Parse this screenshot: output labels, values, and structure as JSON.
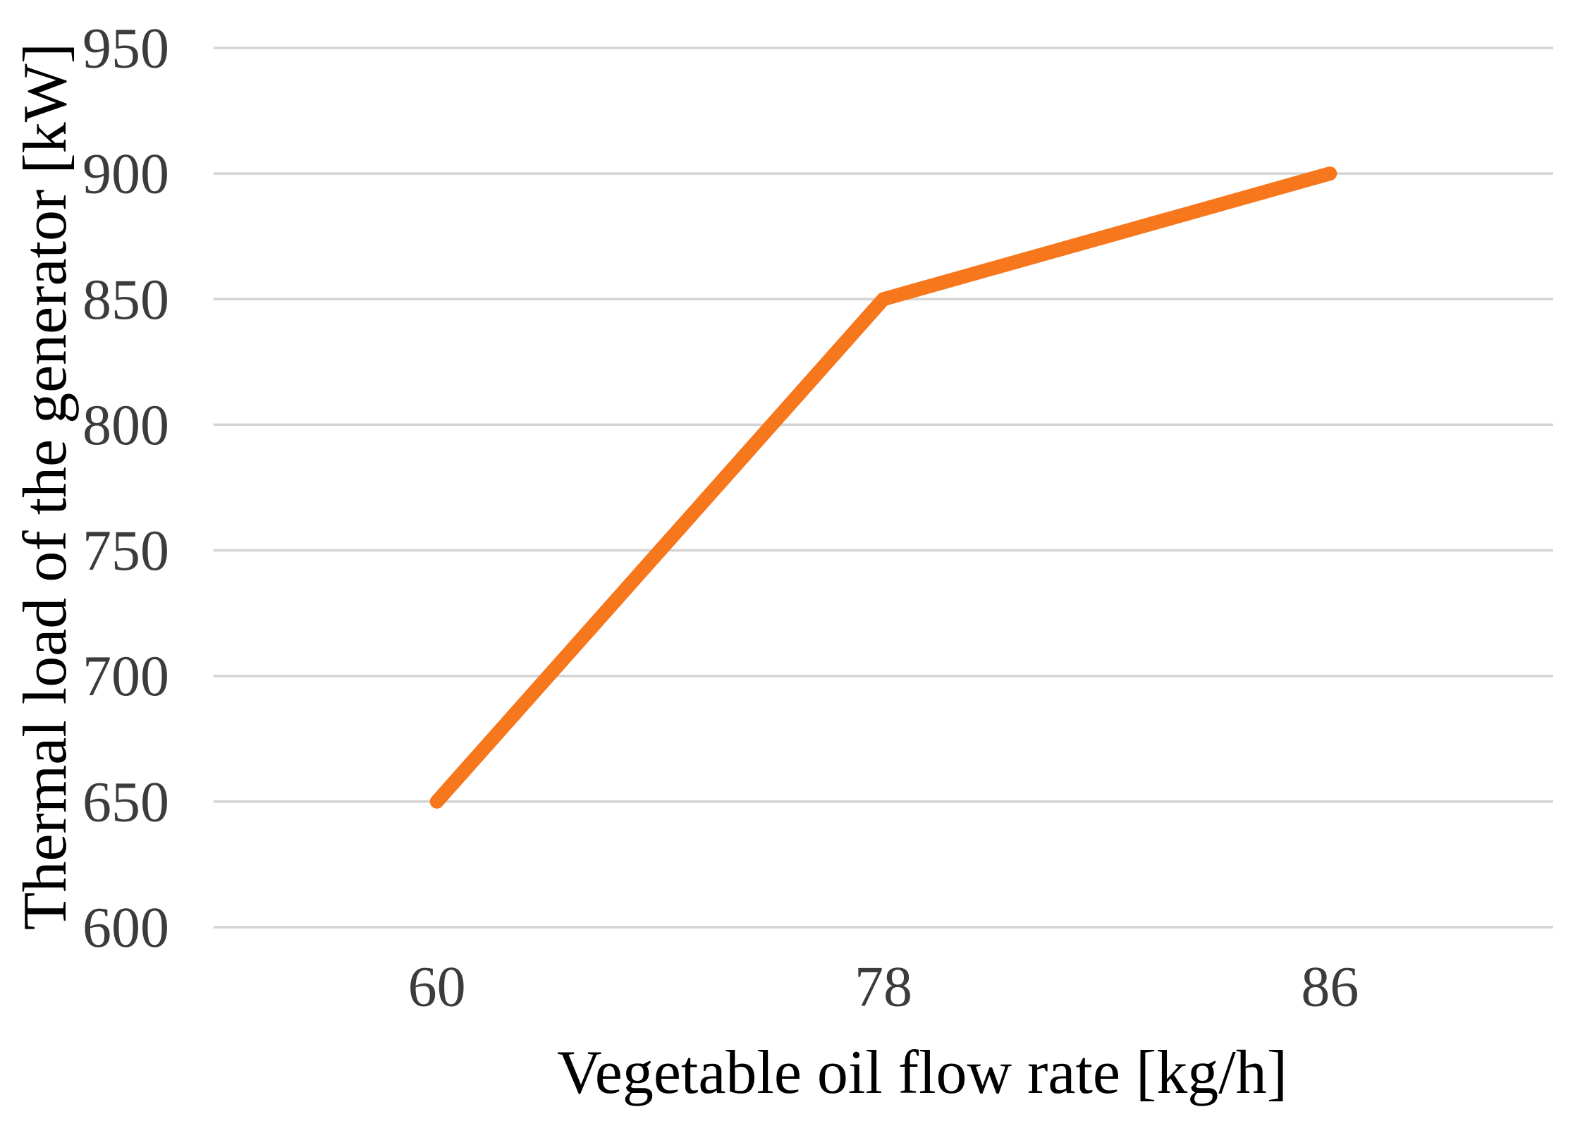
{
  "chart_data": {
    "type": "line",
    "categories": [
      "60",
      "78",
      "86"
    ],
    "values": [
      650,
      850,
      900
    ],
    "title": "",
    "xlabel": "Vegetable oil flow rate [kg/h]",
    "ylabel": "Thermal load of the generator [kW]",
    "ylim": [
      600,
      950
    ],
    "ytick_step": 50,
    "yticks": [
      600,
      650,
      700,
      750,
      800,
      850,
      900,
      950
    ],
    "grid": true,
    "legend_position": "none",
    "colors": {
      "line": "#F7771D",
      "grid": "#D4D4D4",
      "text": "#3C3C3C",
      "background": "#FFFFFF"
    }
  }
}
